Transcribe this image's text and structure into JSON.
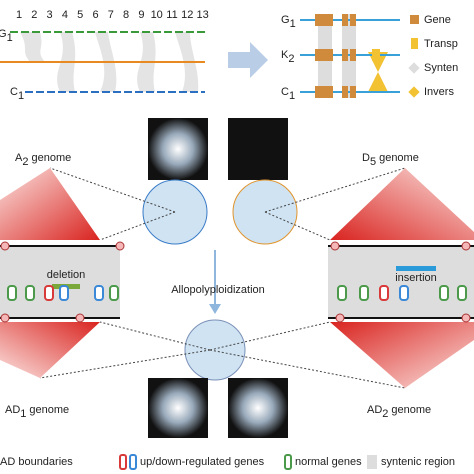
{
  "synteny_panel": {
    "block_numbers": [
      "1",
      "2",
      "3",
      "4",
      "5",
      "6",
      "7",
      "8",
      "9",
      "10",
      "11",
      "12",
      "13"
    ],
    "genome_labels": [
      {
        "letter": "G",
        "sub": "1"
      },
      {
        "letter": "C",
        "sub": "1"
      }
    ]
  },
  "structure_panel": {
    "genome_labels": [
      {
        "letter": "G",
        "sub": "1"
      },
      {
        "letter": "K",
        "sub": "2"
      },
      {
        "letter": "C",
        "sub": "1"
      }
    ],
    "legend": [
      "Gene",
      "Transp",
      "Synten",
      "Invers"
    ]
  },
  "genomes": {
    "top_left": {
      "letter": "A",
      "sub": "2",
      "suffix": "genome"
    },
    "top_right": {
      "letter": "D",
      "sub": "5",
      "suffix": "genome"
    },
    "bottom_left": {
      "letter": "AD",
      "sub": "1",
      "suffix": "genome"
    },
    "bottom_right": {
      "letter": "AD",
      "sub": "2",
      "suffix": "genome"
    }
  },
  "annotations": {
    "deletion": "deletion",
    "insertion": "insertion",
    "process": "Allopolyploidization"
  },
  "legend": [
    "AD boundaries",
    "up/down-regulated genes",
    "normal genes",
    "syntenic region"
  ]
}
